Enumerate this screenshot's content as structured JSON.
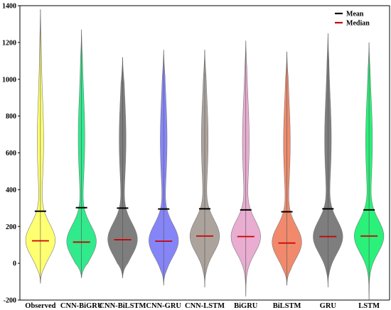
{
  "chart_data": {
    "type": "violin",
    "categories": [
      "Observed",
      "CNN-BiGRU",
      "CNN-BiLSTM",
      "CNN-GRU",
      "CNN-LSTM",
      "BiGRU",
      "BiLSTM",
      "GRU",
      "LSTM"
    ],
    "ylim": [
      -200,
      1400
    ],
    "yticks": [
      -200,
      0,
      200,
      400,
      600,
      800,
      1000,
      1200,
      1400
    ],
    "series": [
      {
        "category": "Observed",
        "color": "#ffff66",
        "min": -110,
        "max": 1380,
        "mean": 283,
        "median": 122
      },
      {
        "category": "CNN-BiGRU",
        "color": "#1ee882",
        "min": -80,
        "max": 1270,
        "mean": 302,
        "median": 115
      },
      {
        "category": "CNN-BiLSTM",
        "color": "#737373",
        "min": -80,
        "max": 1120,
        "mean": 300,
        "median": 128
      },
      {
        "category": "CNN-GRU",
        "color": "#7b7bf7",
        "min": -120,
        "max": 1160,
        "mean": 295,
        "median": 120
      },
      {
        "category": "CNN-LSTM",
        "color": "#a59b95",
        "min": -130,
        "max": 1160,
        "mean": 296,
        "median": 148
      },
      {
        "category": "BiGRU",
        "color": "#e6a6cc",
        "min": -180,
        "max": 1210,
        "mean": 290,
        "median": 145
      },
      {
        "category": "BiLSTM",
        "color": "#f08060",
        "min": -120,
        "max": 1150,
        "mean": 280,
        "median": 110
      },
      {
        "category": "GRU",
        "color": "#737373",
        "min": -130,
        "max": 1250,
        "mean": 296,
        "median": 145
      },
      {
        "category": "LSTM",
        "color": "#17f06e",
        "min": -200,
        "max": 1200,
        "mean": 290,
        "median": 148
      }
    ],
    "legend": {
      "position": "top-right",
      "items": [
        {
          "label": "Mean",
          "color": "#000000"
        },
        {
          "label": "Median",
          "color": "#cc0000"
        }
      ]
    },
    "grid": false
  }
}
